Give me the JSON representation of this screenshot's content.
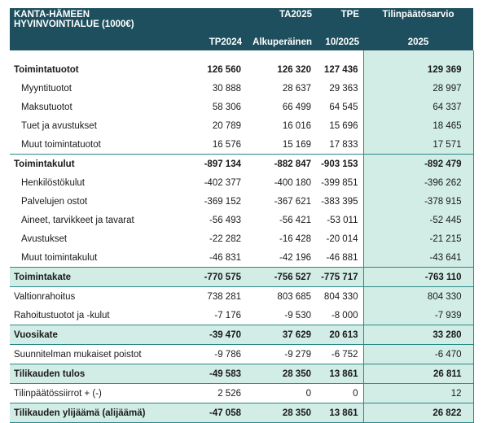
{
  "title": "KANTA-HÄMEEN HYVINVOINTIALUE (1000€)",
  "columns": [
    {
      "line1": "",
      "line2": "TP2024"
    },
    {
      "line1": "TA2025",
      "line2": "Alkuperäinen"
    },
    {
      "line1": "TPE",
      "line2": "10/2025"
    },
    {
      "line1": "Tilinpäätösarvio",
      "line2": "2025"
    }
  ],
  "rows": [
    {
      "label": "Toimintatuotot",
      "values": [
        "126 560",
        "126 320",
        "127 436",
        "129 369"
      ]
    },
    {
      "label": "Myyntituotot",
      "values": [
        "30 888",
        "28 637",
        "29 363",
        "28 997"
      ]
    },
    {
      "label": "Maksutuotot",
      "values": [
        "58 306",
        "66 499",
        "64 545",
        "64 337"
      ]
    },
    {
      "label": "Tuet ja avustukset",
      "values": [
        "20 789",
        "16 016",
        "15 696",
        "18 465"
      ]
    },
    {
      "label": "Muut toimintatuotot",
      "values": [
        "16 576",
        "15 169",
        "17 833",
        "17 571"
      ]
    },
    {
      "label": "Toimintakulut",
      "values": [
        "-897 134",
        "-882 847",
        "-903 153",
        "-892 479"
      ]
    },
    {
      "label": "Henkilöstökulut",
      "values": [
        "-402 377",
        "-400 180",
        "-399 851",
        "-396 262"
      ]
    },
    {
      "label": "Palvelujen ostot",
      "values": [
        "-369 152",
        "-367 621",
        "-383 395",
        "-378 915"
      ]
    },
    {
      "label": "Aineet, tarvikkeet ja tavarat",
      "values": [
        "-56 493",
        "-56 421",
        "-53 011",
        "-52 445"
      ]
    },
    {
      "label": "Avustukset",
      "values": [
        "-22 282",
        "-16 428",
        "-20 014",
        "-21 215"
      ]
    },
    {
      "label": "Muut toimintakulut",
      "values": [
        "-46 831",
        "-42 196",
        "-46 881",
        "-43 641"
      ]
    },
    {
      "label": "Toimintakate",
      "values": [
        "-770 575",
        "-756 527",
        "-775 717",
        "-763 110"
      ]
    },
    {
      "label": "Valtionrahoitus",
      "values": [
        "738 281",
        "803 685",
        "804 330",
        "804 330"
      ]
    },
    {
      "label": "Rahoitustuotot ja -kulut",
      "values": [
        "-7 176",
        "-9 530",
        "-8 000",
        "-7 939"
      ]
    },
    {
      "label": "Vuosikate",
      "values": [
        "-39 470",
        "37 629",
        "20 613",
        "33 280"
      ]
    },
    {
      "label": "Suunnitelman mukaiset poistot",
      "values": [
        "-9 786",
        "-9 279",
        "-6 752",
        "-6 470"
      ]
    },
    {
      "label": "Tilikauden tulos",
      "values": [
        "-49 583",
        "28 350",
        "13 861",
        "26 811"
      ]
    },
    {
      "label": "Tilinpäätössiirrot + (-)",
      "values": [
        "2 526",
        "0",
        "0",
        "12"
      ]
    },
    {
      "label": "Tilikauden ylijäämä (alijäämä)",
      "values": [
        "-47 058",
        "28 350",
        "13 861",
        "26 822"
      ]
    }
  ]
}
